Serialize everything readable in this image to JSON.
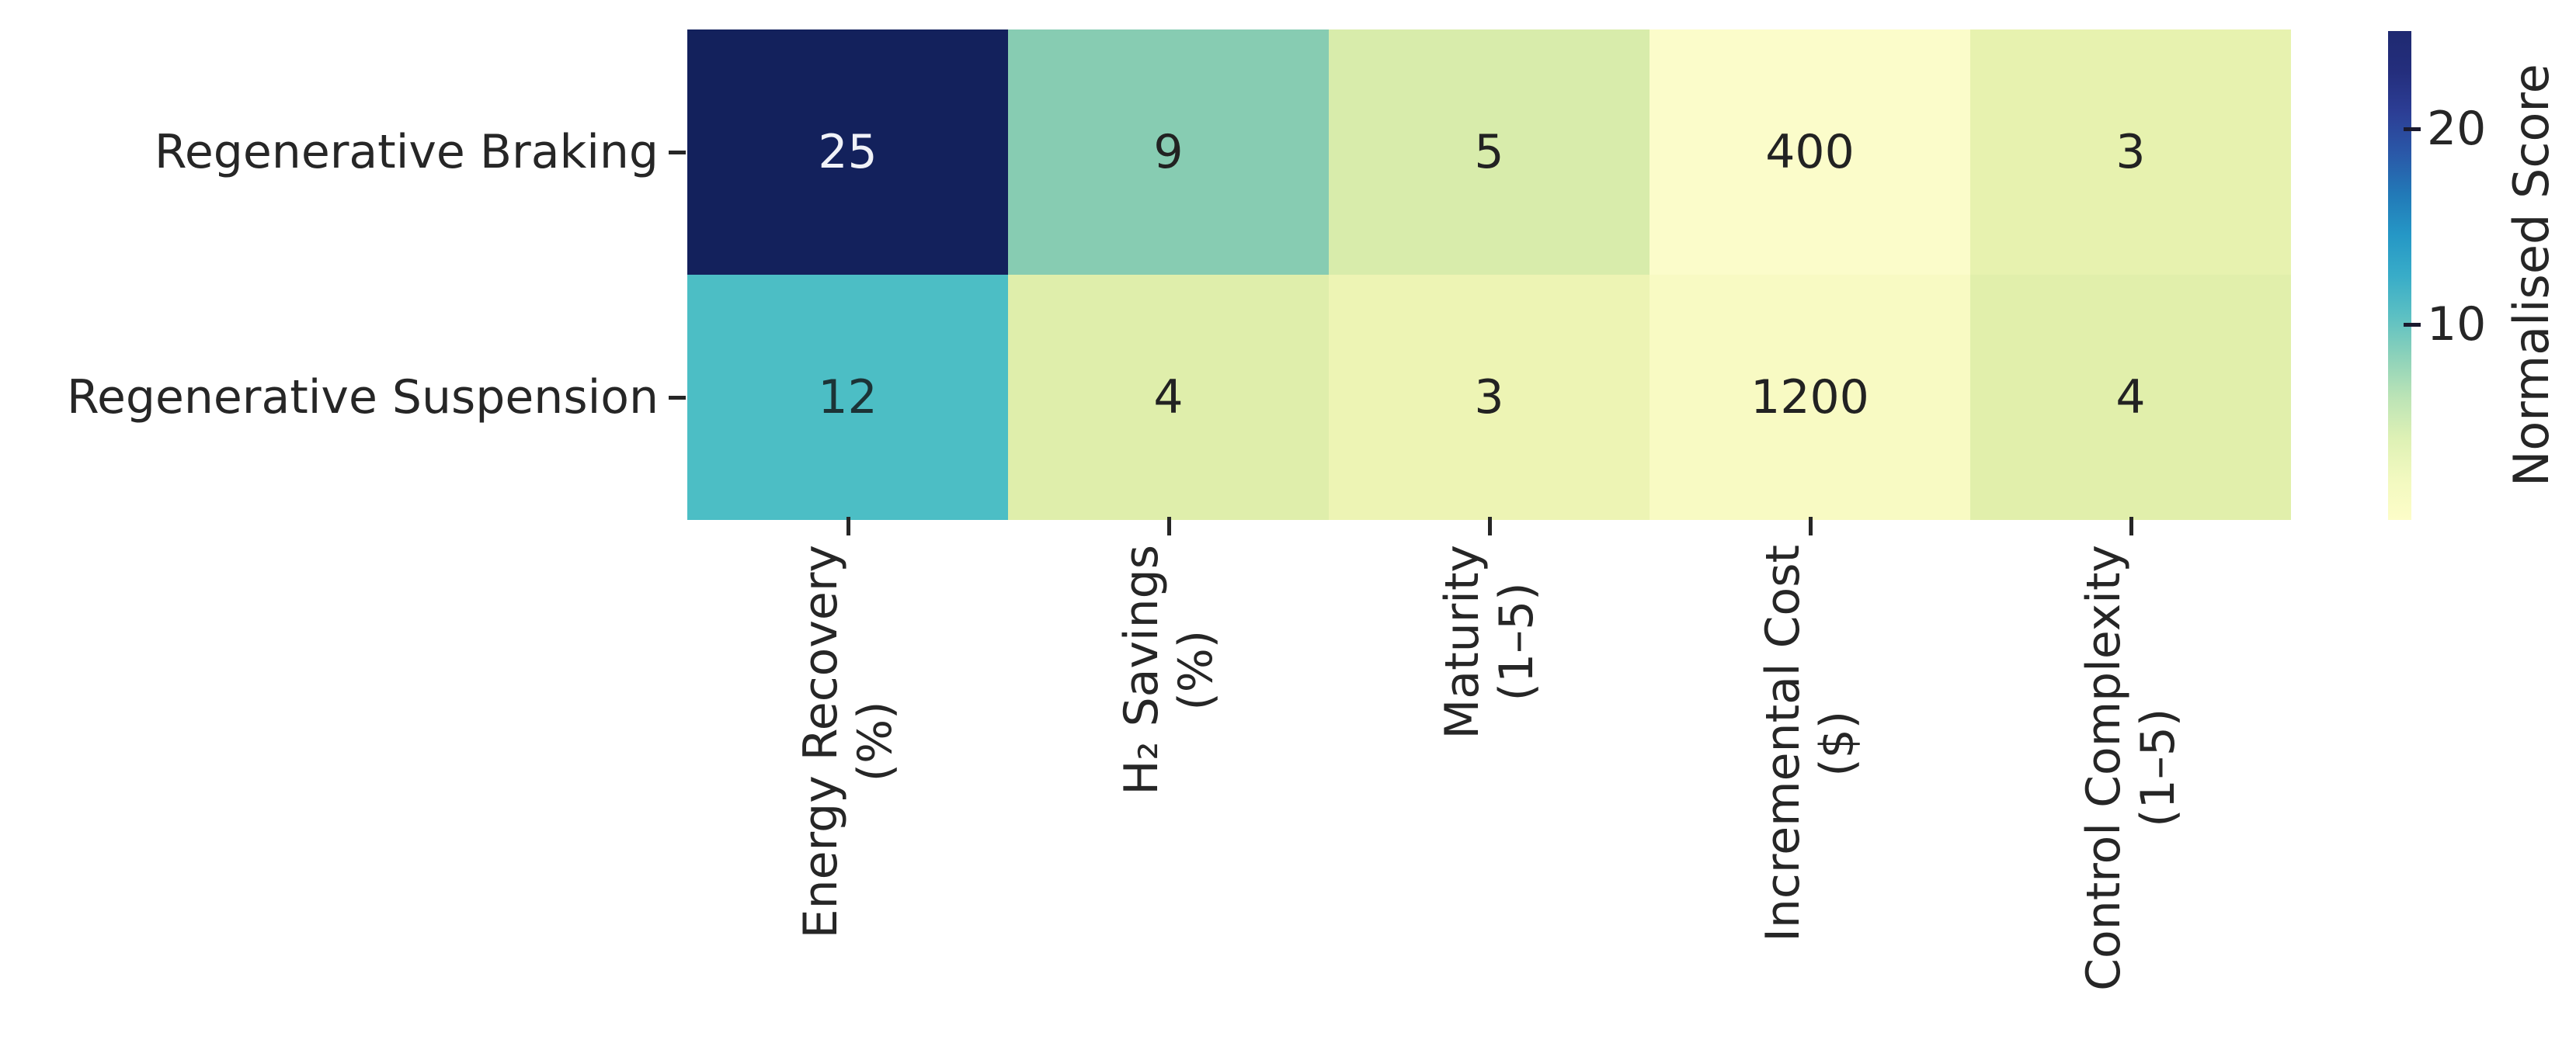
{
  "chart_data": {
    "type": "heatmap",
    "rows": [
      "Regenerative Braking",
      "Regenerative Suspension"
    ],
    "columns": [
      "Energy Recovery\n(%)",
      "H₂ Savings\n(%)",
      "Maturity\n(1–5)",
      "Incremental Cost\n($)",
      "Control Complexity\n(1–5)"
    ],
    "values": [
      [
        25,
        9,
        5,
        400,
        3
      ],
      [
        12,
        4,
        3,
        1200,
        4
      ]
    ],
    "cell_colors": [
      [
        "#13215c",
        "#87ccb2",
        "#d8ecab",
        "#fbfcca",
        "#e7f2af"
      ],
      [
        "#4cbec5",
        "#dfeeab",
        "#edf4b4",
        "#f8fac3",
        "#e1efab"
      ]
    ],
    "cell_text_colors": [
      [
        "#f0f2f8",
        "#222222",
        "#222222",
        "#222222",
        "#222222"
      ],
      [
        "#1c3336",
        "#222222",
        "#222222",
        "#222222",
        "#222222"
      ]
    ],
    "colorbar": {
      "label": "Normalised Score",
      "range": [
        0,
        25
      ],
      "ticks": [
        20,
        10
      ],
      "gradient_bottom_to_top": [
        "#fdfdc8",
        "#f2f9c0",
        "#def1b5",
        "#bce4b6",
        "#8dd2ba",
        "#5cc0c3",
        "#38acc8",
        "#2597c6",
        "#2279b7",
        "#2a58a8",
        "#2c3e95",
        "#242e7d",
        "#1f2a71"
      ]
    },
    "text_color": "#262626",
    "background": "#ffffff",
    "legend_position": "right",
    "grid": false
  }
}
